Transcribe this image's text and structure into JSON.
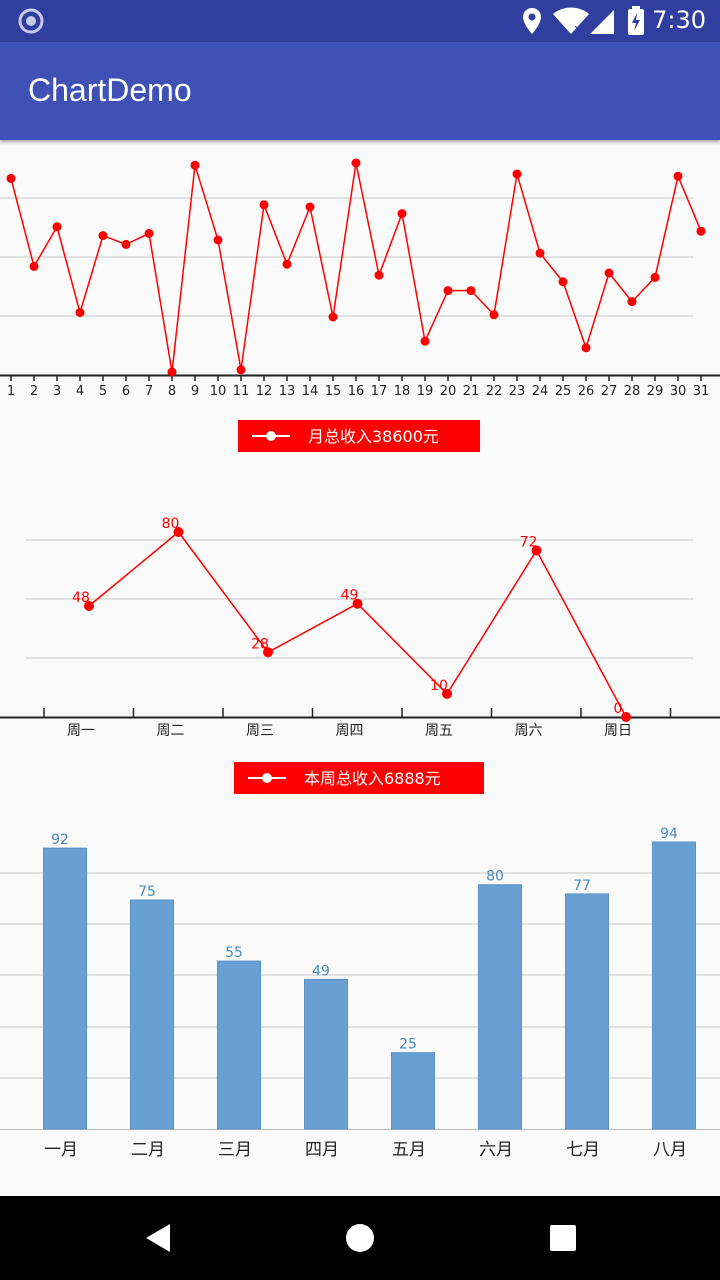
{
  "status_bar": {
    "time": "7:30"
  },
  "app_bar": {
    "title": "ChartDemo"
  },
  "chart_data": [
    {
      "type": "line",
      "x": [
        1,
        2,
        3,
        4,
        5,
        6,
        7,
        8,
        9,
        10,
        11,
        12,
        13,
        14,
        15,
        16,
        17,
        18,
        19,
        20,
        21,
        22,
        23,
        24,
        25,
        26,
        27,
        28,
        29,
        30,
        31
      ],
      "series": [
        {
          "name": "月总收入38600元",
          "values": [
            88,
            48,
            66,
            27,
            62,
            58,
            63,
            0,
            94,
            60,
            1,
            76,
            49,
            75,
            25,
            95,
            44,
            72,
            14,
            37,
            37,
            26,
            90,
            54,
            41,
            11,
            45,
            32,
            43,
            89,
            64
          ]
        }
      ],
      "ylim": [
        0,
        100
      ],
      "grid": true,
      "legend_position": "bottom-center",
      "color": "#ff0000"
    },
    {
      "type": "line",
      "categories": [
        "周一",
        "周二",
        "周三",
        "周四",
        "周五",
        "周六",
        "周日"
      ],
      "series": [
        {
          "name": "本周总收入6888元",
          "values": [
            48,
            80,
            28,
            49,
            10,
            72,
            0
          ]
        }
      ],
      "ylim": [
        0,
        80
      ],
      "data_labels": true,
      "grid": true,
      "legend_position": "bottom-center",
      "color": "#ff0000"
    },
    {
      "type": "bar",
      "categories": [
        "一月",
        "二月",
        "三月",
        "四月",
        "五月",
        "六月",
        "七月",
        "八月"
      ],
      "values": [
        92,
        75,
        55,
        49,
        25,
        80,
        77,
        94
      ],
      "ylim": [
        0,
        100
      ],
      "data_labels": true,
      "grid": true,
      "bar_color": "#68a0d4",
      "label_color": "#4a8cc2"
    }
  ]
}
